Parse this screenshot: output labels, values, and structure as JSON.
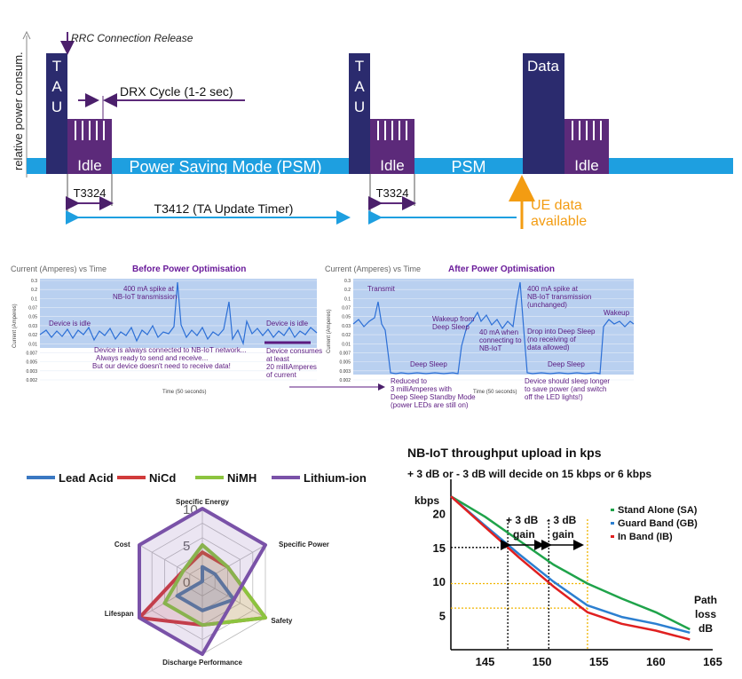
{
  "psm": {
    "ylabel": "relative power consum.",
    "tau1": [
      "T",
      "A",
      "U"
    ],
    "tau2": [
      "T",
      "A",
      "U"
    ],
    "data_label": "Data",
    "idle1": "Idle",
    "idle2": "Idle",
    "idle3": "Idle",
    "psm_band": "Power Saving Mode (PSM)",
    "psm2": "PSM",
    "rrc": "RRC Connection Release",
    "drx": "DRX Cycle (1-2 sec)",
    "t3324_1": "T3324",
    "t3324_2": "T3324",
    "t3412": "T3412 (TA Update Timer)",
    "ue1": "UE data",
    "ue2": "available",
    "colors": {
      "navy": "#2b2b6e",
      "purple": "#5c2a7a",
      "band": "#1e9fe0",
      "arrow": "#1e9fe0",
      "orange": "#f39c12",
      "dark_purple": "#4b1f6b"
    }
  },
  "before": {
    "title_left": "Current (Amperes) vs Time",
    "title": "Before Power Optimisation",
    "ylabel": "Current (Amperes)",
    "ticks": [
      "0.3",
      "0.2",
      "0.1",
      "0.07",
      "0.05",
      "0.03",
      "0.02",
      "0.01",
      "0.007",
      "0.005",
      "0.003",
      "0.002"
    ],
    "xlabel": "Time (50 seconds)",
    "ann_spike": [
      "400 mA spike at",
      "NB-IoT transmission"
    ],
    "ann_idle1": "Device is idle",
    "ann_idle2": "Device is idle",
    "ann_connected": [
      "Device is always connected to NB-IoT network...",
      "Always ready to send and receive...",
      "But our device doesn't need to receive data!"
    ],
    "ann_consumes": [
      "Device consumes",
      "at least",
      "20 milliAmperes",
      "of current"
    ]
  },
  "after": {
    "title_left": "Current (Amperes) vs Time",
    "title": "After Power Optimisation",
    "ylabel": "Current (Amperes)",
    "ticks": [
      "0.3",
      "0.2",
      "0.1",
      "0.07",
      "0.05",
      "0.03",
      "0.02",
      "0.01",
      "0.007",
      "0.005",
      "0.003",
      "0.002"
    ],
    "xlabel": "Time (50 seconds)",
    "ann_transmit": "Transmit",
    "ann_spike": [
      "400 mA spike at",
      "NB-IoT transmission",
      "(unchanged)"
    ],
    "ann_wakeup_deep": [
      "Wakeup from",
      "Deep Sleep"
    ],
    "ann_40ma": [
      "40 mA when",
      "connecting to",
      "NB-IoT"
    ],
    "ann_drop": [
      "Drop into Deep Sleep",
      "(no receiving of",
      "data allowed)"
    ],
    "ann_wakeup": "Wakeup",
    "ann_deep1": "Deep Sleep",
    "ann_deep2": "Deep Sleep",
    "ann_reduced": [
      "Reduced to",
      "3 milliAmperes with",
      "Deep Sleep Standby Mode",
      "(power LEDs are still on)"
    ],
    "ann_sleep_longer": [
      "Device should sleep longer",
      "to save power (and switch",
      "off the LED lights!)"
    ]
  },
  "radar": {
    "legend": [
      {
        "name": "Lead Acid",
        "color": "#3a78c2"
      },
      {
        "name": "NiCd",
        "color": "#d13b3b"
      },
      {
        "name": "NiMH",
        "color": "#8cc43f"
      },
      {
        "name": "Lithium-ion",
        "color": "#7a52a8"
      }
    ],
    "axes": [
      "Specific Energy",
      "Specific Power",
      "Safety",
      "Discharge Performance",
      "Lifespan",
      "Cost"
    ],
    "ring_labels": [
      "10",
      "5",
      "0"
    ],
    "series": [
      {
        "name": "Lead Acid",
        "values": [
          2,
          2,
          5,
          4,
          4,
          0
        ]
      },
      {
        "name": "NiCd",
        "values": [
          4,
          4,
          10,
          6,
          10,
          3
        ]
      },
      {
        "name": "NiMH",
        "values": [
          5,
          4,
          10,
          6,
          6,
          3
        ]
      },
      {
        "name": "Lithium-ion",
        "values": [
          10,
          10,
          5,
          10,
          10,
          10
        ]
      }
    ]
  },
  "tp": {
    "title": "NB-IoT throughput upload in kps",
    "subtitle": "+ 3 dB or - 3 dB will decide on 15 kbps or 6 kbps",
    "ylabel": "kbps",
    "xlabel": [
      "Path",
      "loss",
      "dB"
    ],
    "gain1": [
      "+ 3 dB",
      "gain"
    ],
    "gain2": [
      "- 3 dB",
      "gain"
    ],
    "legend": [
      {
        "name": "Stand Alone (SA)",
        "color": "#1fa34a"
      },
      {
        "name": "Guard Band (GB)",
        "color": "#2c7fd0"
      },
      {
        "name": "In Band (IB)",
        "color": "#e02020"
      }
    ],
    "y_ticks": [
      "5",
      "10",
      "15",
      "20"
    ],
    "x_ticks": [
      "145",
      "150",
      "155",
      "160",
      "165"
    ]
  },
  "chart_data": {
    "type": "line",
    "title": "NB-IoT throughput upload in kps",
    "xlabel": "Path loss dB",
    "ylabel": "kbps",
    "xlim": [
      142,
      165
    ],
    "ylim": [
      0,
      25
    ],
    "series": [
      {
        "name": "Stand Alone (SA)",
        "x": [
          142,
          145,
          148,
          151,
          154,
          157,
          160,
          163
        ],
        "y": [
          22.5,
          19.5,
          16,
          12.5,
          9.7,
          7.5,
          5.5,
          3
        ]
      },
      {
        "name": "Guard Band (GB)",
        "x": [
          142,
          145,
          148,
          151,
          154,
          157,
          160,
          163
        ],
        "y": [
          22.5,
          18.2,
          14,
          10,
          6.5,
          4.8,
          3.8,
          2.5
        ]
      },
      {
        "name": "In Band (IB)",
        "x": [
          142,
          145,
          148,
          151,
          154,
          157,
          160,
          163
        ],
        "y": [
          22.5,
          18,
          13.5,
          9.3,
          5.5,
          3.8,
          2.8,
          1.5
        ]
      }
    ]
  }
}
